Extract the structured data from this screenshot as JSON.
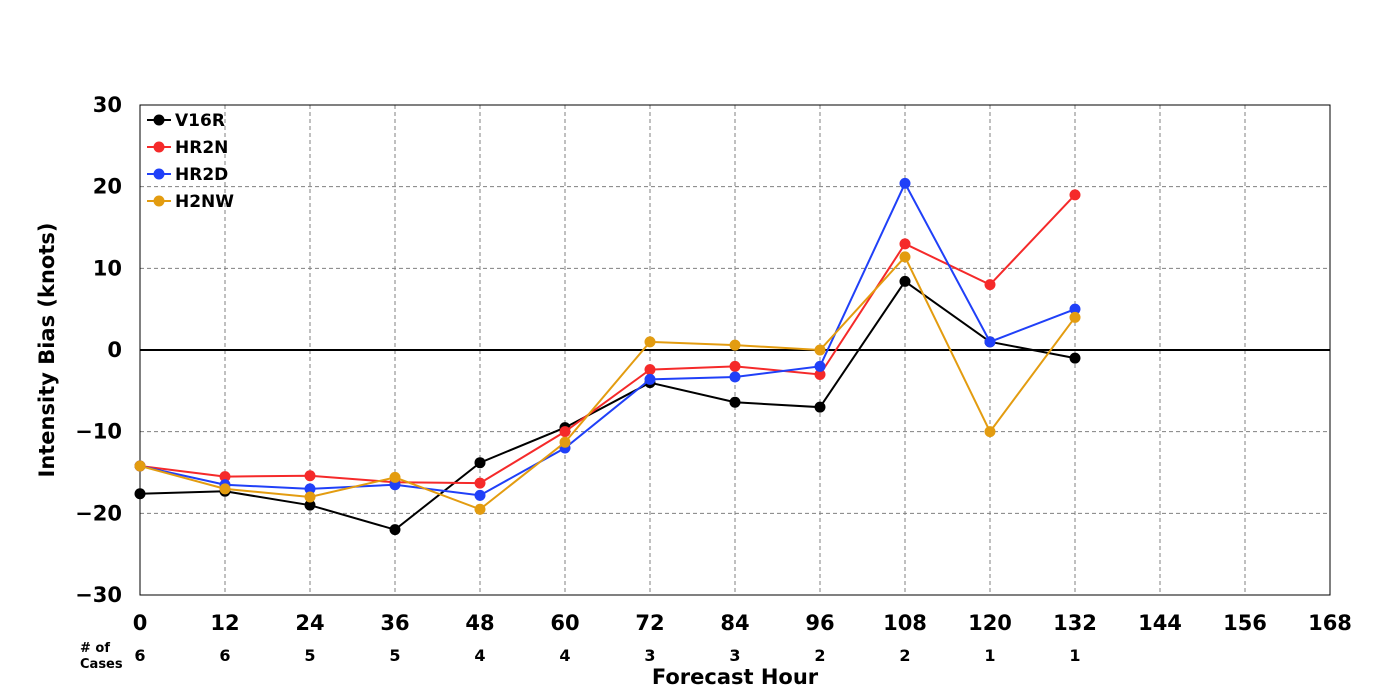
{
  "chart_data": {
    "type": "line",
    "xlabel": "Forecast Hour",
    "ylabel": "Intensity Bias (knots)",
    "xlim": [
      0,
      168
    ],
    "ylim": [
      -30,
      30
    ],
    "x_ticks": [
      0,
      12,
      24,
      36,
      48,
      60,
      72,
      84,
      96,
      108,
      120,
      132,
      144,
      156,
      168
    ],
    "y_ticks": [
      -30,
      -20,
      -10,
      0,
      10,
      20,
      30
    ],
    "y_tick_labels": [
      "−30",
      "−20",
      "−10",
      "0",
      "10",
      "20",
      "30"
    ],
    "grid": true,
    "legend_position": "top-left",
    "cases_label": "# of\nCases",
    "cases": [
      {
        "x": 0,
        "n": "6"
      },
      {
        "x": 12,
        "n": "6"
      },
      {
        "x": 24,
        "n": "5"
      },
      {
        "x": 36,
        "n": "5"
      },
      {
        "x": 48,
        "n": "4"
      },
      {
        "x": 60,
        "n": "4"
      },
      {
        "x": 72,
        "n": "3"
      },
      {
        "x": 84,
        "n": "3"
      },
      {
        "x": 96,
        "n": "2"
      },
      {
        "x": 108,
        "n": "2"
      },
      {
        "x": 120,
        "n": "1"
      },
      {
        "x": 132,
        "n": "1"
      }
    ],
    "series": [
      {
        "name": "V16R",
        "color": "#000000",
        "x": [
          0,
          12,
          24,
          36,
          48,
          60,
          72,
          84,
          96,
          108,
          120,
          132
        ],
        "y": [
          -17.6,
          -17.3,
          -19,
          -22,
          -13.8,
          -9.5,
          -4,
          -6.4,
          -7,
          8.4,
          1,
          -1
        ]
      },
      {
        "name": "HR2N",
        "color": "#f52a2a",
        "x": [
          0,
          12,
          24,
          36,
          48,
          60,
          72,
          84,
          96,
          108,
          120,
          132
        ],
        "y": [
          -14.2,
          -15.5,
          -15.4,
          -16.2,
          -16.3,
          -10,
          -2.4,
          -2,
          -3,
          13,
          8,
          19
        ]
      },
      {
        "name": "HR2D",
        "color": "#2040f8",
        "x": [
          0,
          12,
          24,
          36,
          48,
          60,
          72,
          84,
          96,
          108,
          120,
          132
        ],
        "y": [
          -14.2,
          -16.5,
          -17,
          -16.5,
          -17.8,
          -12,
          -3.6,
          -3.3,
          -2,
          20.4,
          1,
          5
        ]
      },
      {
        "name": "H2NW",
        "color": "#e39c10",
        "x": [
          0,
          12,
          24,
          36,
          48,
          60,
          72,
          84,
          96,
          108,
          120,
          132
        ],
        "y": [
          -14.2,
          -17,
          -18,
          -15.6,
          -19.5,
          -11.3,
          1,
          0.6,
          0,
          11.4,
          -10,
          4
        ]
      }
    ]
  }
}
